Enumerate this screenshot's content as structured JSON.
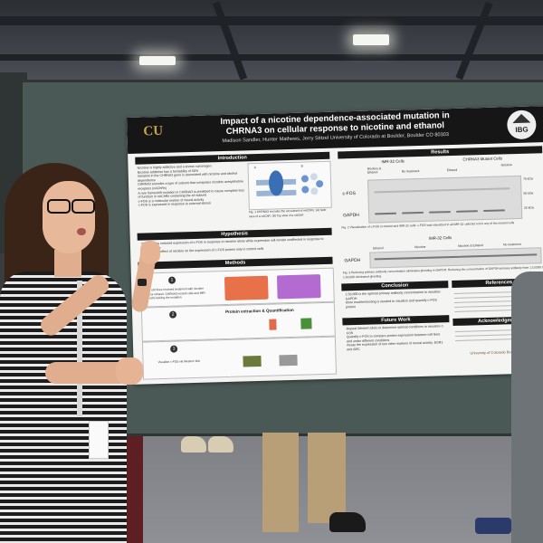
{
  "poster": {
    "title_line1": "Impact of a nicotine dependence-associated mutation in",
    "title_line2": "CHRNA3 on cellular response to nicotine and ethanol",
    "authors": "Madison Sandler, Hunter Mathews, Jerry Stitzel University of Colorado at Boulder, Boulder CO 80303",
    "logo_left": "CU",
    "logo_right": "IBG",
    "sections": {
      "introduction": "Introduction",
      "hypothesis": "Hypothesis",
      "methods": "Methods",
      "results": "Results",
      "conclusion": "Conclusion",
      "future_work": "Future Work",
      "references": "References",
      "acknowledgments": "Acknowledgments"
    },
    "intro_bullets": [
      "Nicotine is highly addictive and a known carcinogen",
      "Nicotine addiction has a heritability of 50%",
      "Variation in the CHRNA3 gene is associated with nicotine and alcohol dependence",
      "CHRNA3 encodes a type of subunit that comprises nicotinic acetylcholine receptors (nAChRs)",
      "A rare frameshift mutation in CHRNA3 is predicted to cause complete loss of function in nAChRs containing the a3 subunit",
      "c-FOS is a molecular marker of neural activity",
      "c-FOS is expressed in response to external stimuli"
    ],
    "fig1_label_a": "A",
    "fig1_label_b": "B",
    "fig1_caption": "Fig. 1 CHRNA3 encodes the a3 subunit of nAChRs: (A) Side view of a nAChR. (B) Top view of a nAChR",
    "hypothesis_lines": [
      "There will be reduced expression of c-FOS in response to nicotine alone while expression will remain unaffected in response to ethanol alone",
      "Examine the effect of nicotine on the expression of c-FOS protein only in control cells"
    ],
    "methods_step1": "Test cell lines received treatment with nicotine and/or ethanol. CHRNA3 mutant cells and IMR-32 cells lacking the mutation",
    "methods_step2": "Protein extraction & Quantification",
    "methods_step3": "Visualize c-FOS via Western blot",
    "step_numbers": [
      "1",
      "2",
      "3"
    ],
    "results": {
      "imr32_label": "IMR-32 Cells",
      "mutant_label": "CHRNA3 Mutant Cells",
      "col_headers": [
        "Nicotine & Ethanol",
        "No treatment",
        "Ethanol",
        "Nicotine"
      ],
      "row_labels": [
        "c-FOS",
        "GAPDH"
      ],
      "markers": [
        "75 kDa",
        "50 kDa",
        "25 kDa"
      ],
      "fig2_caption": "Fig. 2 Visualization of c-FOS in mutant and IMR-32 cells: c-FOS was visualized in all IMR-32 cells but not in any of the mutant cells",
      "imr32_label2": "IMR-32 Cells",
      "col_headers2": [
        "Ethanol",
        "Nicotine",
        "Nicotine & Ethanol",
        "No treatment"
      ],
      "row_label2": "GAPDH",
      "fig3_caption": "Fig. 3 Reducing primary antibody concentration eliminates ghosting in GAPDH: Reducing the concentration of GAPDH primary antibody from 1:10,000 to 1:50,000 eliminated ghosting"
    },
    "conclusion_lines": [
      "1:50,000 is the optimal primary antibody concentration to visualize GAPDH",
      "More troubleshooting is needed to visualize and quantify c-FOS protein"
    ],
    "future_lines": [
      "Repeat Western blots to determine optimal conditions to visualize c-FOS",
      "Quantify c-FOS to compare protein expression between cell lines and under different conditions",
      "Assay the expression of two other markers of neural activity, EGR1 and ARC"
    ],
    "footer_logo": "University of Colorado Boulder"
  },
  "colors": {
    "board": "#4a5856",
    "poster_header": "#161616",
    "cu_gold": "#c7a44a",
    "dress_stripe_dark": "#1d1d1d",
    "hair": "#3a2418"
  }
}
